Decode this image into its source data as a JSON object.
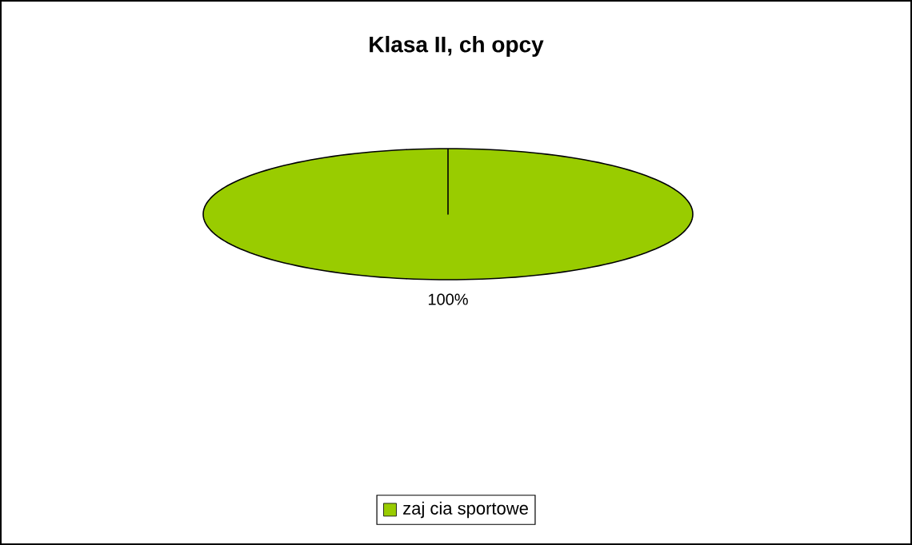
{
  "chart_data": {
    "type": "pie",
    "title": "Klasa II, ch opcy",
    "categories": [
      "zaj  cia sportowe"
    ],
    "values": [
      100
    ],
    "colors": [
      "#99cc00"
    ],
    "value_labels": [
      "100%"
    ],
    "legend": "bottom"
  }
}
